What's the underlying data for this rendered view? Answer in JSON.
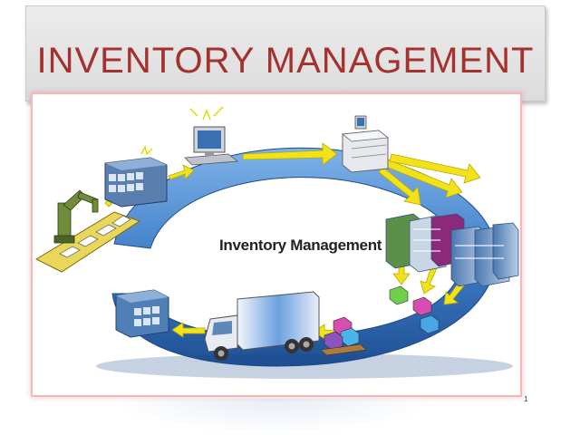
{
  "slide": {
    "title": "INVENTORY MANAGEMENT",
    "center_label": "Inventory Management",
    "page_number": "1"
  },
  "colors": {
    "title_text": "#a5312f",
    "ring_blue": "#3f7fc9",
    "arrow_yellow": "#f2e21a",
    "frame_border": "#f2b8b8"
  },
  "icons": [
    "robot-arm-icon",
    "conveyor-icon",
    "server-rack-icon",
    "computer-icon",
    "printer-icon",
    "shelving-icon",
    "package-icon",
    "truck-icon",
    "warehouse-icon"
  ]
}
